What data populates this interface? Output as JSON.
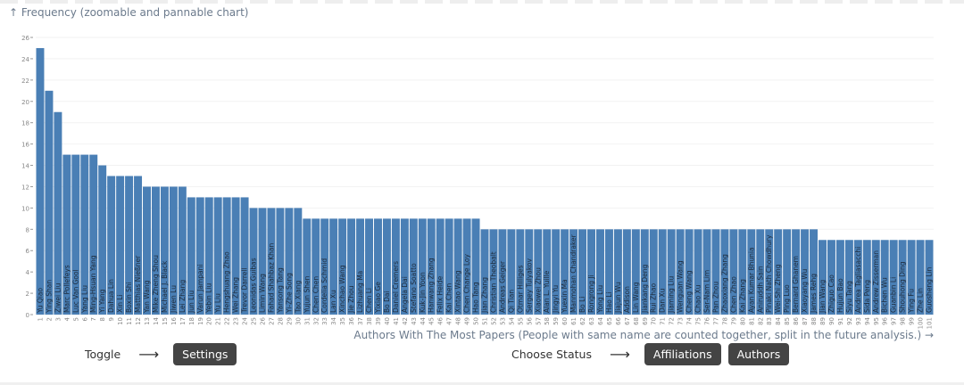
{
  "chart_data": {
    "type": "bar",
    "title": "↑ Frequency (zoomable and pannable chart)",
    "xlabel": "Authors With The Most Papers (People with same name are counted together, split in the future analysis.) →",
    "ylabel": "Frequency",
    "ylim": [
      0,
      26
    ],
    "yticks": [
      0,
      2,
      4,
      6,
      8,
      10,
      12,
      14,
      16,
      18,
      20,
      22,
      24,
      26
    ],
    "grid": true,
    "bar_color": "#4a7fb5",
    "categories": [
      "Yu Qiao",
      "Ying Shan",
      "Ziwei Liu",
      "Marc Pollefeys",
      "Luc Van Gool",
      "Yang Liu",
      "Ming-Hsuan Yang",
      "Yi Yang",
      "Dahua Lin",
      "Xin Li",
      "Boxin Shi",
      "Matthias Nießner",
      "Yan Wang",
      "Mike Zheng Shou",
      "Michael J. Black",
      "Jiwen Lu",
      "Lei Zhang",
      "Jun Liu",
      "Varun Jampani",
      "Yebin Liu",
      "Yu Liu",
      "Hengshuang Zhao",
      "Wei Zhang",
      "Trevor Darrell",
      "Leonidas Guibas",
      "Limin Wang",
      "Fahad Shahbaz Khan",
      "Yansong Tang",
      "Yi-Zhe Song",
      "Tao Xiang",
      "Yujun Shen",
      "Chen Chen",
      "Cordelia Schmid",
      "Lan Xu",
      "Xinchao Wang",
      "Jie Zhou",
      "Lizhuang Ma",
      "Chen Li",
      "Yixiao Ge",
      "Bo Dai",
      "Daniel Cremers",
      "Angela Dai",
      "Stefano Soatto",
      "Kuk-Jin Yoon",
      "Hanwang Zhang",
      "Felix Heide",
      "Kai Chen",
      "Xintao Wang",
      "Chen Change Loy",
      "Hao Tang",
      "Jian Zhang",
      "Christian Theobalt",
      "Andreas Geiger",
      "Qi Tian",
      "Otmar Hilliges",
      "Sergey Tulyakov",
      "Xiaowei Zhou",
      "Alan L. Yuille",
      "Jingyi Yu",
      "Yuexin Ma",
      "Manmohan Chandraker",
      "Bo Li",
      "Rongrong Ji",
      "Yong Liu",
      "Hao Li",
      "Jiajun Wu",
      "Addison",
      "Lin Wang",
      "Jiankang Deng",
      "Rui Zhao",
      "Dan Xu",
      "Jiaming Liu",
      "Wenguan Wang",
      "Cheng Wang",
      "Chao Xu",
      "Ser-Nam Lim",
      "Pan Zhou",
      "Zhaoxiang Zhang",
      "Chen Zhao",
      "Kai Zhang",
      "Ayan Kumar Bhunia",
      "Aniruddh Sain",
      "Pinaki Nath Chowdhury",
      "Wei-Shi Zheng",
      "Ping Luo",
      "Bernard Ghanem",
      "Xiaoyang Wu",
      "James Rehg",
      "Jian Wang",
      "Zhiguo Cao",
      "Hujun Bao",
      "Siyu Tang",
      "Andrea Tagliasacchi",
      "Sida Peng",
      "Andrew Zisserman",
      "Bichen Wu",
      "Guanbin Li",
      "Shouhong Ding",
      "Ying Fu",
      "Zhe Lin",
      "Guosheng Lin"
    ],
    "values": [
      25,
      21,
      19,
      15,
      15,
      15,
      15,
      14,
      13,
      13,
      13,
      13,
      12,
      12,
      12,
      12,
      12,
      11,
      11,
      11,
      11,
      11,
      11,
      11,
      10,
      10,
      10,
      10,
      10,
      10,
      9,
      9,
      9,
      9,
      9,
      9,
      9,
      9,
      9,
      9,
      9,
      9,
      9,
      9,
      9,
      9,
      9,
      9,
      9,
      9,
      8,
      8,
      8,
      8,
      8,
      8,
      8,
      8,
      8,
      8,
      8,
      8,
      8,
      8,
      8,
      8,
      8,
      8,
      8,
      8,
      8,
      8,
      8,
      8,
      8,
      8,
      8,
      8,
      8,
      8,
      8,
      8,
      8,
      8,
      8,
      8,
      8,
      8,
      7,
      7,
      7,
      7,
      7,
      7,
      7,
      7,
      7,
      7,
      7,
      7,
      7
    ]
  },
  "controls": {
    "toggle_label": "Toggle",
    "toggle_arrow": "⟶",
    "settings_button": "Settings",
    "status_label": "Choose Status",
    "status_arrow": "⟶",
    "affiliations_button": "Affiliations",
    "authors_button": "Authors"
  }
}
